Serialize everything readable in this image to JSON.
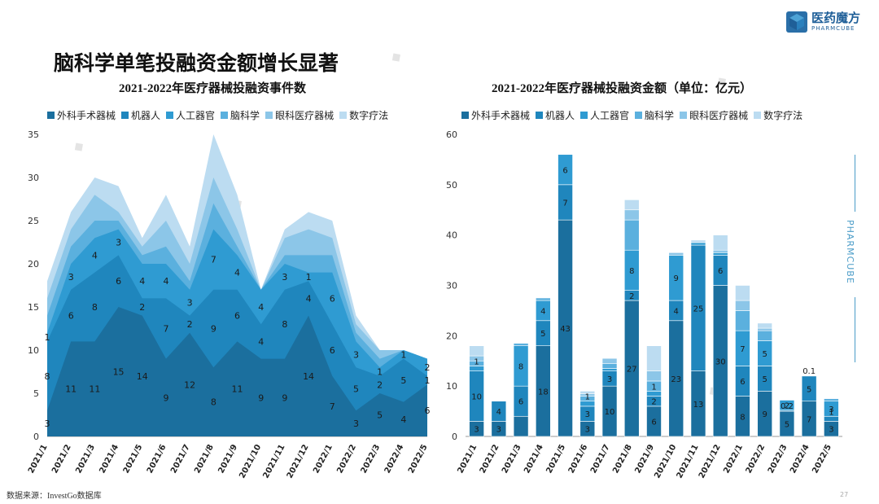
{
  "page": {
    "main_title": "脑科学单笔投融资金额增长显著",
    "source": "数据来源：InvestGo数据库",
    "page_number": "27",
    "brand_cn": "医药魔方",
    "brand_en": "PHARMCUBE",
    "side_brand": "PHARMCUBE"
  },
  "colors": {
    "series": [
      "#1b6f9e",
      "#1f86bd",
      "#2f9bd2",
      "#5bb0de",
      "#8cc6e8",
      "#bcdcf1"
    ],
    "accent": "#1f5f98"
  },
  "chart_data": [
    {
      "type": "area",
      "title": "2021-2022年医疗器械投融资事件数",
      "categories": [
        "2021/1",
        "2021/2",
        "2021/3",
        "2021/4",
        "2021/5",
        "2021/6",
        "2021/7",
        "2021/8",
        "2021/9",
        "2021/10",
        "2021/11",
        "2021/12",
        "2022/1",
        "2022/2",
        "2022/3",
        "2022/4",
        "2022/5"
      ],
      "ylim": [
        0,
        35
      ],
      "yticks": [
        0,
        5,
        10,
        15,
        20,
        25,
        30,
        35
      ],
      "stacked": true,
      "legend_position": "top",
      "series": [
        {
          "name": "外科手术器械",
          "values": [
            3,
            11,
            11,
            15,
            14,
            9,
            12,
            8,
            11,
            9,
            9,
            14,
            7,
            3,
            5,
            4,
            6
          ]
        },
        {
          "name": "机器人",
          "values": [
            8,
            6,
            8,
            6,
            2,
            7,
            2,
            9,
            6,
            4,
            8,
            4,
            6,
            5,
            2,
            5,
            1
          ]
        },
        {
          "name": "人工器官",
          "values": [
            1,
            3,
            4,
            3,
            4,
            4,
            3,
            7,
            4,
            4,
            3,
            1,
            6,
            3,
            1,
            1,
            2
          ]
        },
        {
          "name": "脑科学",
          "values": [
            2,
            2,
            2,
            1,
            1,
            2,
            1,
            3,
            1,
            0,
            1,
            2,
            2,
            1,
            1,
            0,
            0
          ]
        },
        {
          "name": "眼科医疗器械",
          "values": [
            2,
            2,
            3,
            1,
            1,
            3,
            2,
            3,
            2,
            0,
            2,
            3,
            2,
            1,
            1,
            0,
            0
          ]
        },
        {
          "name": "数字疗法",
          "values": [
            2,
            2,
            2,
            3,
            1,
            3,
            2,
            5,
            4,
            0,
            1,
            2,
            2,
            1,
            0,
            0,
            0
          ]
        }
      ]
    },
    {
      "type": "bar",
      "title": "2021-2022年医疗器械投融资金额（单位：亿元）",
      "categories": [
        "2021/1",
        "2021/2",
        "2021/3",
        "2021/4",
        "2021/5",
        "2021/6",
        "2021/7",
        "2021/8",
        "2021/9",
        "2021/10",
        "2021/11",
        "2021/12",
        "2022/1",
        "2022/2",
        "2022/3",
        "2022/4",
        "2022/5"
      ],
      "ylim": [
        0,
        60
      ],
      "yticks": [
        0,
        10,
        20,
        30,
        40,
        50,
        60
      ],
      "stacked": true,
      "legend_position": "top",
      "series": [
        {
          "name": "外科手术器械",
          "values": [
            3,
            3,
            4,
            18,
            43,
            3,
            10,
            27,
            6,
            23,
            13,
            30,
            8,
            9,
            5,
            7,
            3
          ]
        },
        {
          "name": "机器人",
          "values": [
            10,
            4,
            6,
            5,
            7,
            3,
            3,
            2,
            2,
            4,
            25,
            6,
            6,
            5,
            0.2,
            5,
            1
          ]
        },
        {
          "name": "人工器官",
          "values": [
            1,
            0,
            8,
            4,
            6,
            1,
            0.5,
            8,
            1,
            9,
            0.5,
            0.5,
            7,
            5,
            2,
            0.1,
            3
          ]
        },
        {
          "name": "脑科学",
          "values": [
            1,
            0,
            0.5,
            0.5,
            0,
            1,
            1,
            6,
            2,
            0,
            0,
            0,
            4,
            2,
            0,
            0,
            0.5
          ]
        },
        {
          "name": "眼科医疗器械",
          "values": [
            1,
            0,
            0,
            0,
            0,
            0.5,
            1,
            2,
            2,
            0.5,
            0,
            0.5,
            2,
            0.5,
            0,
            0,
            0
          ]
        },
        {
          "name": "数字疗法",
          "values": [
            2,
            0,
            0,
            0,
            0,
            0.5,
            0,
            2,
            5,
            0,
            0.5,
            3,
            3,
            1,
            0,
            0,
            0
          ]
        }
      ],
      "data_labels": [
        {
          "series": 0,
          "labels": [
            "3",
            "3",
            "",
            "18",
            "43",
            "3",
            "10",
            "27",
            "6",
            "23",
            "13",
            "30",
            "8",
            "9",
            "5",
            "7",
            "3"
          ]
        },
        {
          "series": 1,
          "labels": [
            "10",
            "4",
            "6",
            "5",
            "7",
            "3",
            "3",
            "2",
            "2",
            "4",
            "25",
            "6",
            "6",
            "5",
            "0.2",
            "5",
            "1"
          ]
        },
        {
          "series": 2,
          "labels": [
            "1",
            "",
            "8",
            "4",
            "6",
            "1",
            "",
            "8",
            "1",
            "9",
            "",
            "",
            "7",
            "5",
            "2",
            "0.1",
            "3"
          ]
        },
        {
          "series": 3,
          "labels": [
            "",
            "",
            "",
            "",
            "",
            "",
            "",
            "",
            "",
            "",
            "",
            "",
            "",
            "",
            "",
            "",
            ""
          ]
        }
      ]
    }
  ]
}
